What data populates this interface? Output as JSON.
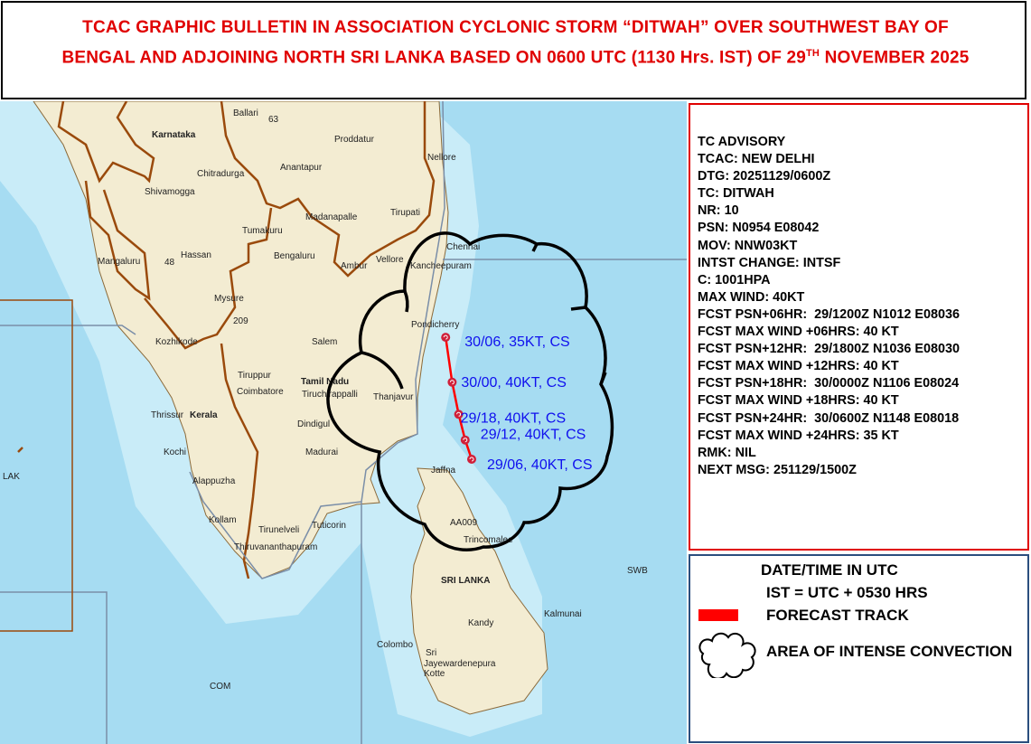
{
  "title": {
    "line1": "TCAC GRAPHIC BULLETIN IN ASSOCIATION CYCLONIC STORM “DITWAH” OVER SOUTHWEST BAY OF",
    "line2_pre": "BENGAL AND ADJOINING NORTH SRI LANKA BASED ON 0600 UTC (1130 Hrs. IST) OF 29",
    "line2_sup": "TH",
    "line2_post": " NOVEMBER 2025",
    "color": "#e00000"
  },
  "advisory": {
    "lines": [
      "TC ADVISORY",
      "TCAC: NEW DELHI",
      "DTG: 20251129/0600Z",
      "TC: DITWAH",
      "NR: 10",
      "PSN: N0954 E08042",
      "MOV: NNW03KT",
      "INTST CHANGE: INTSF",
      "C: 1001HPA",
      "MAX WIND: 40KT",
      "FCST PSN+06HR:  29/1200Z N1012 E08036",
      "FCST MAX WIND +06HRS: 40 KT",
      "FCST PSN+12HR:  29/1800Z N1036 E08030",
      "FCST MAX WIND +12HRS: 40 KT",
      "FCST PSN+18HR:  30/0000Z N1106 E08024",
      "FCST MAX WIND +18HRS: 40 KT",
      "FCST PSN+24HR:  30/0600Z N1148 E08018",
      "FCST MAX WIND +24HRS: 35 KT",
      "RMK: NIL",
      "NEXT MSG: 251129/1500Z"
    ],
    "border_color": "#e00000"
  },
  "legend": {
    "heading": "DATE/TIME IN UTC",
    "ist_note": "IST = UTC + 0530 HRS",
    "forecast_track": "FORECAST TRACK",
    "convection": "AREA OF INTENSE CONVECTION",
    "track_color": "#ff0000",
    "border_color": "#2b4e7e"
  },
  "track": {
    "points": [
      {
        "label": "29/06, 40KT, CS",
        "lat": 9.9,
        "lon": 80.7
      },
      {
        "label": "29/12, 40KT, CS",
        "lat": 10.2,
        "lon": 80.6
      },
      {
        "label": "29/18, 40KT, CS",
        "lat": 10.6,
        "lon": 80.5
      },
      {
        "label": "30/00, 40KT, CS",
        "lat": 11.1,
        "lon": 80.4
      },
      {
        "label": "30/06, 35KT, CS",
        "lat": 11.8,
        "lon": 80.3
      }
    ],
    "label_color": "#1010ee",
    "line_color": "#ff0000",
    "symbol_color": "#d0203a"
  },
  "map": {
    "labels": [
      "Karnataka",
      "Ballari",
      "Anantapur",
      "Proddatur",
      "Nellore",
      "Chitradurga",
      "Shivamogga",
      "Madanapalle",
      "Tirupati",
      "Tumakuru",
      "Chennai",
      "Mangaluru",
      "Hassan",
      "Bengaluru",
      "Ambur",
      "Vellore",
      "Kancheepuram",
      "Mysure",
      "Pondicherry",
      "Salem",
      "Kozhikode",
      "Tiruppur",
      "Tamil Nadu",
      "Coimbatore",
      "Tiruchirappalli",
      "Thanjavur",
      "Thrissur",
      "Kerala",
      "Dindigul",
      "Kochi",
      "Madurai",
      "Alappuzha",
      "Kollam",
      "Tirunelveli",
      "Tuticorin",
      "Thiruvananthapuram",
      "Jaffna",
      "Trincomalee",
      "SRI LANKA",
      "Kalmunai",
      "Kandy",
      "Colombo",
      "Sri",
      "Jayewardenepura",
      "Kotte",
      "LAK",
      "COM",
      "SWB",
      "AA009",
      "63",
      "48",
      "209"
    ],
    "ocean_color": "#a6dcf2",
    "land_color": "#f3ecd2",
    "border_color": "#9a4a0c"
  }
}
